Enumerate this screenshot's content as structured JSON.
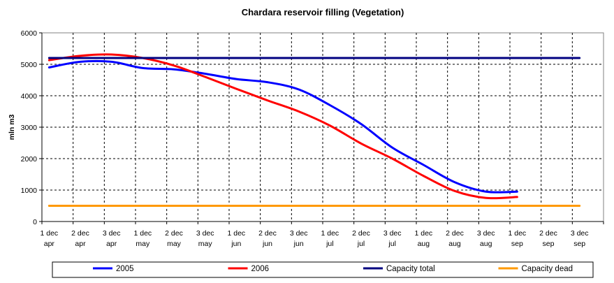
{
  "chart_data": {
    "type": "line",
    "title": "Chardara reservoir filling  (Vegetation)",
    "xlabel": "",
    "ylabel": "mln m3",
    "ylim": [
      0,
      6000
    ],
    "yticks": [
      0,
      1000,
      2000,
      3000,
      4000,
      5000,
      6000
    ],
    "categories": [
      [
        "1 dec",
        "apr"
      ],
      [
        "2 dec",
        "apr"
      ],
      [
        "3 dec",
        "apr"
      ],
      [
        "1 dec",
        "may"
      ],
      [
        "2 dec",
        "may"
      ],
      [
        "3 dec",
        "may"
      ],
      [
        "1 dec",
        "jun"
      ],
      [
        "2 dec",
        "jun"
      ],
      [
        "3 dec",
        "jun"
      ],
      [
        "1 dec",
        "jul"
      ],
      [
        "2 dec",
        "jul"
      ],
      [
        "3 dec",
        "jul"
      ],
      [
        "1 dec",
        "aug"
      ],
      [
        "2 dec",
        "aug"
      ],
      [
        "3 dec",
        "aug"
      ],
      [
        "1 dec",
        "sep"
      ],
      [
        "2 dec",
        "sep"
      ],
      [
        "3 dec",
        "sep"
      ]
    ],
    "grid": true,
    "legend_position": "bottom",
    "series": [
      {
        "name": "2005",
        "color": "#0000ff",
        "values": [
          4900,
          5080,
          5080,
          4880,
          4840,
          4700,
          4530,
          4430,
          4200,
          3700,
          3100,
          2350,
          1800,
          1250,
          950,
          950,
          null,
          null
        ]
      },
      {
        "name": "2006",
        "color": "#ff0000",
        "values": [
          5130,
          5270,
          5310,
          5200,
          4960,
          4600,
          4220,
          3850,
          3500,
          3050,
          2480,
          2000,
          1450,
          970,
          750,
          780,
          null,
          null
        ]
      },
      {
        "name": "Capacity total",
        "color": "#000080",
        "values": [
          5200,
          5200,
          5200,
          5200,
          5200,
          5200,
          5200,
          5200,
          5200,
          5200,
          5200,
          5200,
          5200,
          5200,
          5200,
          5200,
          5200,
          5200
        ]
      },
      {
        "name": "Capacity dead",
        "color": "#ff9900",
        "values": [
          500,
          500,
          500,
          500,
          500,
          500,
          500,
          500,
          500,
          500,
          500,
          500,
          500,
          500,
          500,
          500,
          500,
          500
        ]
      }
    ]
  }
}
